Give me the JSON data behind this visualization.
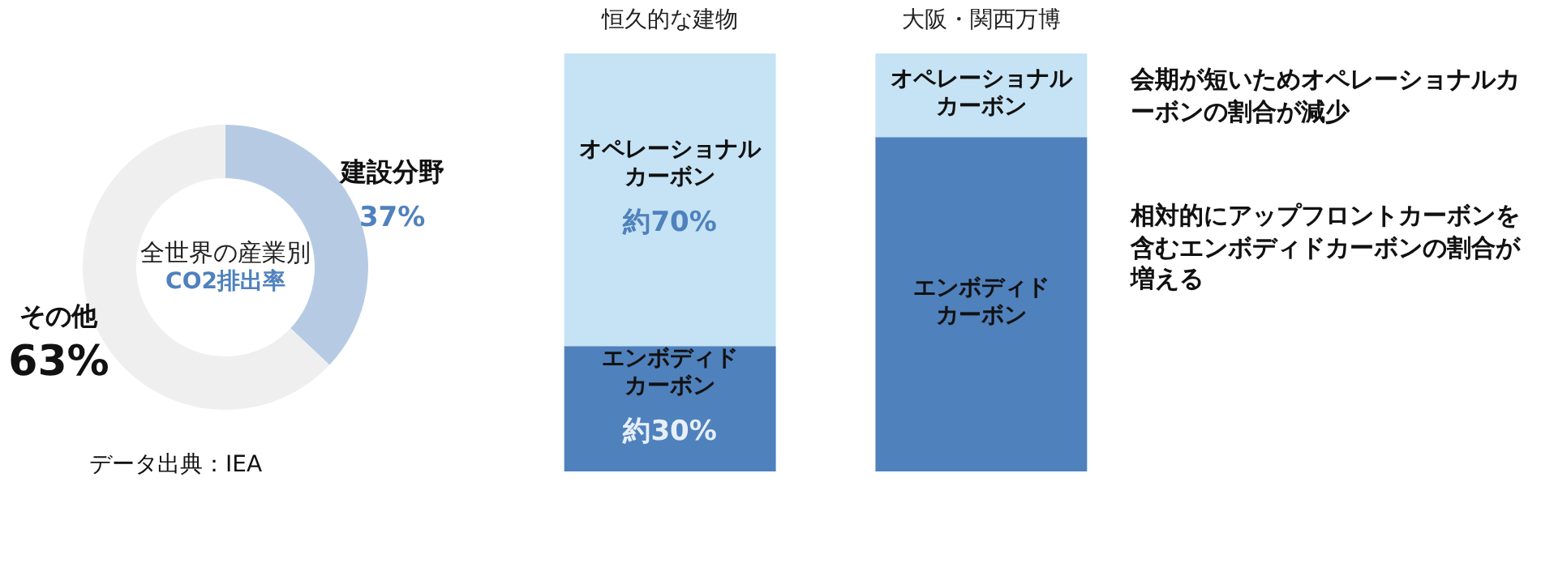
{
  "chart_data": [
    {
      "type": "donut",
      "title": "全世界の産業別\nCO2排出率",
      "categories": [
        "建設分野",
        "その他"
      ],
      "values": [
        37,
        63
      ],
      "value_labels": [
        "37%",
        "63%"
      ],
      "colors": [
        "#b6cbe3",
        "#efefef"
      ],
      "annotations": [
        "データ出典：IEA"
      ]
    },
    {
      "type": "bar",
      "stacked": true,
      "categories": [
        "恒久的な建物",
        "大阪・関西万博"
      ],
      "ylim": [
        0,
        100
      ],
      "tick_labels": "x",
      "series": [
        {
          "name": "エンボディドカーボン",
          "color": "#4f81bd",
          "values": [
            30,
            80
          ],
          "value_labels": [
            "約30%",
            null
          ]
        },
        {
          "name": "オペレーショナルカーボン",
          "color": "#c5e3f4",
          "values": [
            70,
            20
          ],
          "value_labels": [
            "約70%",
            null
          ]
        }
      ],
      "annotations": [
        "会期が短いためオペレーショナルカーボンの割合が減少",
        "相対的にアップフロントカーボンを含むエンボディドカーボンの割合が増える"
      ]
    }
  ]
}
